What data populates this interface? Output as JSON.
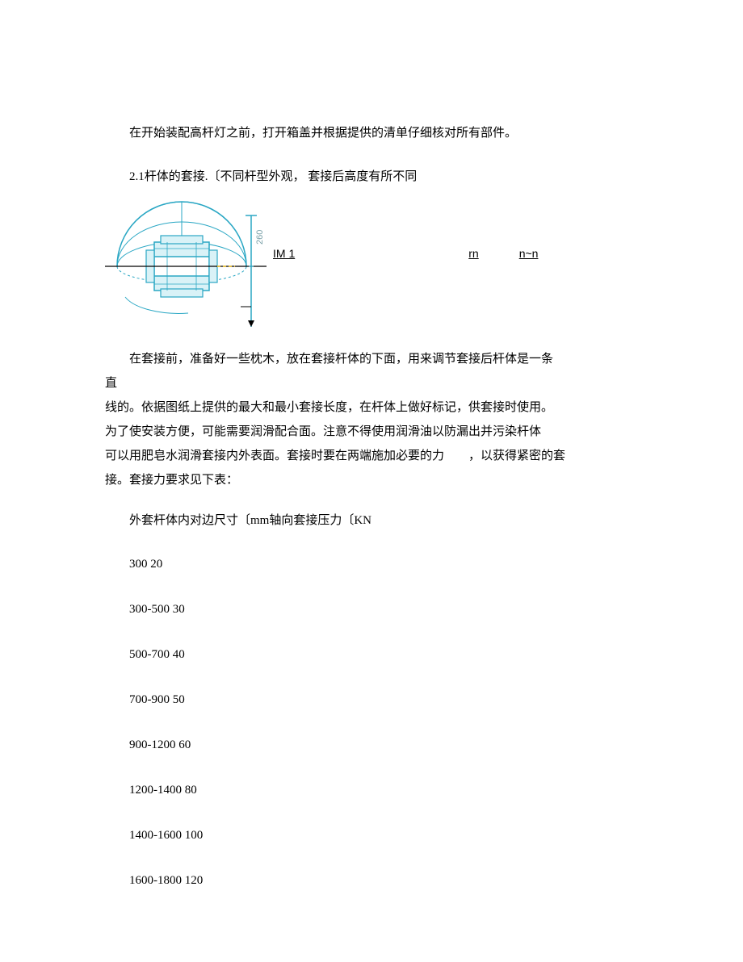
{
  "intro": "在开始装配高杆灯之前，打开箱盖并根据提供的清单仔细核对所有部件。",
  "section21": "2.1杆体的套接.〔不同杆型外观， 套接后高度有所不同",
  "figure": {
    "stroke_color": "#2aa7c4",
    "inner_fill": "#d9f2f7",
    "axis_color": "#a8a8a8",
    "label_color": "#7aa0a8",
    "label_text": "260",
    "im_label": "IM 1",
    "rn_label": "rn",
    "nn_label": "n~n"
  },
  "body_lines": [
    "在套接前，准备好一些枕木，放在套接杆体的下面，用来调节套接后杆体是一条",
    "直",
    "线的。依据图纸上提供的最大和最小套接长度，在杆体上做好标记，供套接时使用。",
    "为了使安装方便，可能需要润滑配合面。注意不得使用润滑油以防漏出并污染杆体",
    "可以用肥皂水润滑套接内外表面。套接时要在两端施加必要的力　　，以获得紧密的套",
    "接。套接力要求见下表："
  ],
  "table_title": "外套杆体内对边尺寸〔mm轴向套接压力〔KN",
  "table": {
    "rows": [
      {
        "size": "300",
        "force": "20"
      },
      {
        "size": "300-500",
        "force": "30"
      },
      {
        "size": "500-700",
        "force": "40"
      },
      {
        "size": "700-900",
        "force": "50"
      },
      {
        "size": "900-1200",
        "force": "60"
      },
      {
        "size": "1200-1400",
        "force": "80"
      },
      {
        "size": "1400-1600",
        "force": "100"
      },
      {
        "size": "1600-1800",
        "force": "120"
      }
    ]
  }
}
